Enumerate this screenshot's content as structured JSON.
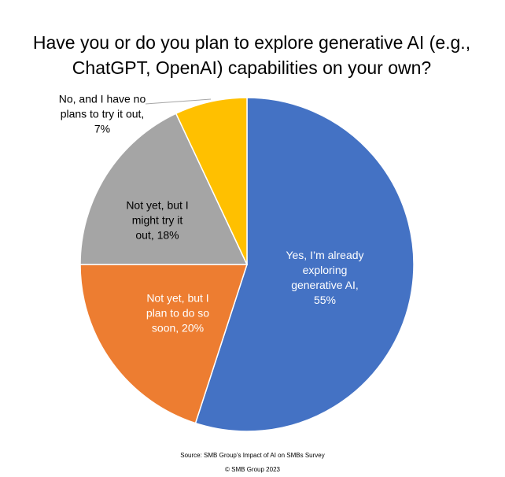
{
  "chart_data": {
    "type": "pie",
    "title": "Have you or do you plan to explore generative AI (e.g., ChatGPT, OpenAI) capabilities on your own?",
    "values": [
      55,
      20,
      18,
      7
    ],
    "value_labels": [
      "Yes, I’m already exploring generative AI, 55%",
      "Not yet, but I plan to do so soon, 20%",
      "Not yet, but I might try it out, 18%",
      "No, and I have no plans to try it out, 7%"
    ],
    "colors": [
      "#4472c4",
      "#ed7d31",
      "#a5a5a5",
      "#ffc000"
    ],
    "source": "Source: SMB Group’s Impact of AI on SMBs Survey",
    "copyright": "© SMB Group 2023"
  }
}
